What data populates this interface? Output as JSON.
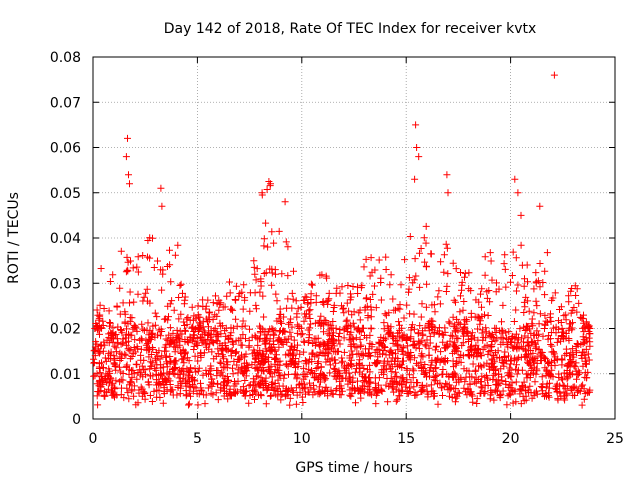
{
  "chart_data": {
    "type": "scatter",
    "title": "Day 142 of 2018, Rate Of TEC Index for receiver kvtx",
    "xlabel": "GPS time / hours",
    "ylabel": "ROTI / TECUs",
    "xlim": [
      0,
      25
    ],
    "ylim": [
      0,
      0.08
    ],
    "xticks": [
      0,
      5,
      10,
      15,
      20,
      25
    ],
    "xtick_labels": [
      "0",
      "5",
      "10",
      "15",
      "20",
      "25"
    ],
    "yticks": [
      0,
      0.01,
      0.02,
      0.03,
      0.04,
      0.05,
      0.06,
      0.07,
      0.08
    ],
    "ytick_labels": [
      "0",
      "0.01",
      "0.02",
      "0.03",
      "0.04",
      "0.05",
      "0.06",
      "0.07",
      "0.08"
    ],
    "grid": true,
    "marker": "+",
    "colors": {
      "series": "#ff0000",
      "grid": "#999999",
      "axis": "#000000"
    },
    "series": [
      {
        "name": "ROTI",
        "x_range": [
          0,
          23.8
        ],
        "dense_band": [
          0.005,
          0.02
        ],
        "envelope": [
          {
            "x": 0.0,
            "y": 0.015
          },
          {
            "x": 0.5,
            "y": 0.04
          },
          {
            "x": 1.0,
            "y": 0.035
          },
          {
            "x": 1.5,
            "y": 0.04
          },
          {
            "x": 2.0,
            "y": 0.035
          },
          {
            "x": 2.5,
            "y": 0.043
          },
          {
            "x": 3.0,
            "y": 0.04
          },
          {
            "x": 3.5,
            "y": 0.035
          },
          {
            "x": 4.0,
            "y": 0.043
          },
          {
            "x": 4.5,
            "y": 0.025
          },
          {
            "x": 5.0,
            "y": 0.025
          },
          {
            "x": 5.5,
            "y": 0.028
          },
          {
            "x": 6.0,
            "y": 0.027
          },
          {
            "x": 6.5,
            "y": 0.033
          },
          {
            "x": 7.0,
            "y": 0.03
          },
          {
            "x": 7.5,
            "y": 0.035
          },
          {
            "x": 8.0,
            "y": 0.05
          },
          {
            "x": 8.5,
            "y": 0.053
          },
          {
            "x": 9.0,
            "y": 0.045
          },
          {
            "x": 9.5,
            "y": 0.035
          },
          {
            "x": 10.0,
            "y": 0.028
          },
          {
            "x": 10.5,
            "y": 0.03
          },
          {
            "x": 11.0,
            "y": 0.033
          },
          {
            "x": 11.5,
            "y": 0.03
          },
          {
            "x": 12.0,
            "y": 0.033
          },
          {
            "x": 12.5,
            "y": 0.03
          },
          {
            "x": 13.0,
            "y": 0.035
          },
          {
            "x": 13.5,
            "y": 0.037
          },
          {
            "x": 14.0,
            "y": 0.039
          },
          {
            "x": 14.5,
            "y": 0.032
          },
          {
            "x": 15.0,
            "y": 0.04
          },
          {
            "x": 15.5,
            "y": 0.043
          },
          {
            "x": 16.0,
            "y": 0.043
          },
          {
            "x": 16.5,
            "y": 0.038
          },
          {
            "x": 17.0,
            "y": 0.042
          },
          {
            "x": 17.5,
            "y": 0.036
          },
          {
            "x": 18.0,
            "y": 0.033
          },
          {
            "x": 18.5,
            "y": 0.032
          },
          {
            "x": 19.0,
            "y": 0.042
          },
          {
            "x": 19.5,
            "y": 0.033
          },
          {
            "x": 20.0,
            "y": 0.045
          },
          {
            "x": 20.5,
            "y": 0.04
          },
          {
            "x": 21.0,
            "y": 0.035
          },
          {
            "x": 21.5,
            "y": 0.045
          },
          {
            "x": 22.0,
            "y": 0.03
          },
          {
            "x": 22.5,
            "y": 0.025
          },
          {
            "x": 23.0,
            "y": 0.035
          },
          {
            "x": 23.5,
            "y": 0.025
          },
          {
            "x": 23.8,
            "y": 0.02
          }
        ],
        "outliers": [
          {
            "x": 1.65,
            "y": 0.062
          },
          {
            "x": 1.6,
            "y": 0.058
          },
          {
            "x": 1.7,
            "y": 0.054
          },
          {
            "x": 1.75,
            "y": 0.052
          },
          {
            "x": 3.25,
            "y": 0.051
          },
          {
            "x": 3.3,
            "y": 0.047
          },
          {
            "x": 8.5,
            "y": 0.052
          },
          {
            "x": 8.1,
            "y": 0.05
          },
          {
            "x": 9.2,
            "y": 0.048
          },
          {
            "x": 15.45,
            "y": 0.065
          },
          {
            "x": 15.5,
            "y": 0.06
          },
          {
            "x": 15.6,
            "y": 0.058
          },
          {
            "x": 15.4,
            "y": 0.053
          },
          {
            "x": 16.95,
            "y": 0.054
          },
          {
            "x": 17.0,
            "y": 0.05
          },
          {
            "x": 20.2,
            "y": 0.053
          },
          {
            "x": 20.35,
            "y": 0.05
          },
          {
            "x": 20.5,
            "y": 0.045
          },
          {
            "x": 21.4,
            "y": 0.047
          },
          {
            "x": 22.1,
            "y": 0.076
          }
        ]
      }
    ]
  }
}
